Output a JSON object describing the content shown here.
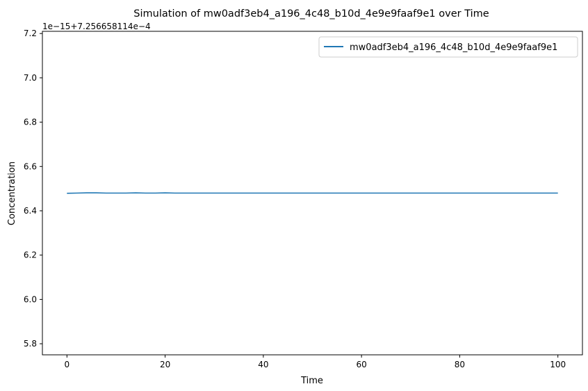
{
  "chart_data": {
    "type": "line",
    "title": "Simulation of mw0adf3eb4_a196_4c48_b10d_4e9e9faaf9e1 over Time",
    "xlabel": "Time",
    "ylabel": "Concentration",
    "offset_label": "1e−15+7.256658114e−4",
    "xlim": [
      -5,
      105
    ],
    "ylim": [
      5.75,
      7.21
    ],
    "xticks": [
      0,
      20,
      40,
      60,
      80,
      100
    ],
    "xtick_labels": [
      "0",
      "20",
      "40",
      "60",
      "80",
      "100"
    ],
    "yticks": [
      5.8,
      6.0,
      6.2,
      6.4,
      6.6,
      6.8,
      7.0,
      7.2
    ],
    "ytick_labels": [
      "5.8",
      "6.0",
      "6.2",
      "6.4",
      "6.6",
      "6.8",
      "7.0",
      "7.2"
    ],
    "grid": false,
    "legend_position": "upper right",
    "series": [
      {
        "name": "mw0adf3eb4_a196_4c48_b10d_4e9e9faaf9e1",
        "color": "#1f77b4",
        "x": [
          0,
          2,
          4,
          6,
          8,
          10,
          12,
          14,
          16,
          18,
          20,
          22,
          25,
          30,
          40,
          50,
          60,
          70,
          80,
          90,
          100
        ],
        "y": [
          6.479,
          6.48,
          6.481,
          6.481,
          6.48,
          6.48,
          6.48,
          6.481,
          6.48,
          6.48,
          6.481,
          6.48,
          6.48,
          6.48,
          6.48,
          6.48,
          6.48,
          6.48,
          6.48,
          6.48,
          6.48
        ]
      }
    ]
  }
}
